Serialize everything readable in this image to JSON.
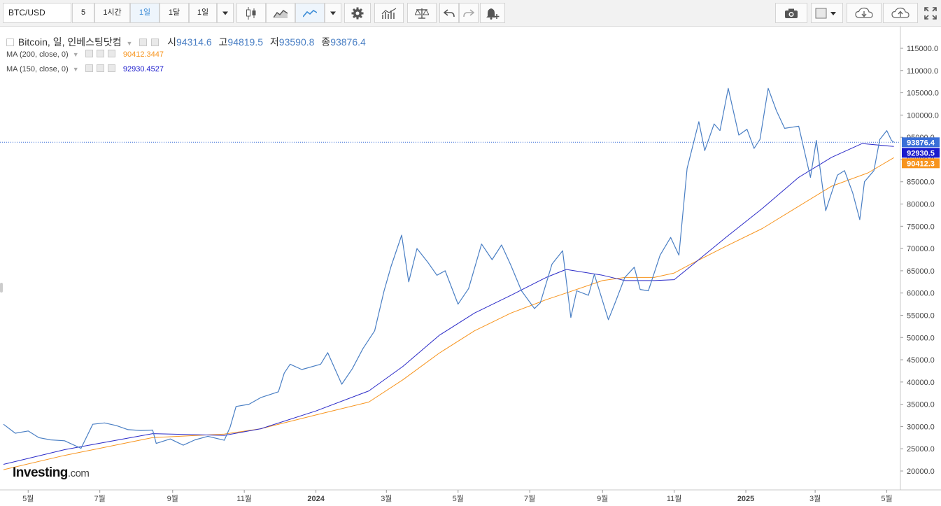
{
  "toolbar": {
    "symbol": "BTC/USD",
    "interval": "5",
    "buttons": [
      "1시간",
      "1일",
      "1달",
      "1일"
    ],
    "active_button_index": 1,
    "icons": [
      "candlestick-chart-icon",
      "area-chart-icon",
      "line-chart-icon",
      "dropdown-icon",
      "settings-gear-icon",
      "bar-chart-icon",
      "scales-icon",
      "undo-icon",
      "redo-icon",
      "alert-bell-icon",
      "camera-icon",
      "color-box-icon",
      "cloud-download-icon",
      "cloud-upload-icon",
      "fullscreen-icon"
    ]
  },
  "legend": {
    "title": "Bitcoin, 일, 인베스팅닷컴",
    "open_label": "시",
    "open": "94314.6",
    "high_label": "고",
    "high": "94819.5",
    "low_label": "저",
    "low": "93590.8",
    "close_label": "종",
    "close": "93876.4",
    "ma200_label": "MA (200, close, 0)",
    "ma200_value": "90412.3447",
    "ma150_label": "MA (150, close, 0)",
    "ma150_value": "92930.4527"
  },
  "logo": {
    "main": "Investing",
    "suffix": ".com"
  },
  "colors": {
    "price": "#4a7fc4",
    "ma200": "#f7941d",
    "ma150": "#2b2bc8",
    "last_price_tag": "#3a6fd8",
    "ma150_tag": "#1a1acc",
    "ma200_tag": "#f7941d"
  },
  "chart_data": {
    "type": "line",
    "y_axis": {
      "ticks": [
        115000,
        110000,
        105000,
        100000,
        95000,
        90000,
        85000,
        80000,
        75000,
        70000,
        65000,
        60000,
        55000,
        50000,
        45000,
        40000,
        35000,
        30000,
        25000,
        20000
      ],
      "ylim": [
        15000,
        120000
      ]
    },
    "x_axis": {
      "range": [
        "2023-04-10",
        "2025-05-12"
      ],
      "ticks": [
        {
          "date": "2023-05-01",
          "label": "5월"
        },
        {
          "date": "2023-07-01",
          "label": "7월"
        },
        {
          "date": "2023-09-01",
          "label": "9월"
        },
        {
          "date": "2023-11-01",
          "label": "11월"
        },
        {
          "date": "2024-01-01",
          "label": "2024"
        },
        {
          "date": "2024-03-01",
          "label": "3월"
        },
        {
          "date": "2024-05-01",
          "label": "5월"
        },
        {
          "date": "2024-07-01",
          "label": "7월"
        },
        {
          "date": "2024-09-01",
          "label": "9월"
        },
        {
          "date": "2024-11-01",
          "label": "11월"
        },
        {
          "date": "2025-01-01",
          "label": "2025"
        },
        {
          "date": "2025-03-01",
          "label": "3월"
        },
        {
          "date": "2025-05-01",
          "label": "5월"
        }
      ]
    },
    "series": [
      {
        "key": "price",
        "points": [
          [
            "2023-04-10",
            30500
          ],
          [
            "2023-04-20",
            28500
          ],
          [
            "2023-05-01",
            29000
          ],
          [
            "2023-05-10",
            27500
          ],
          [
            "2023-05-20",
            27000
          ],
          [
            "2023-06-01",
            26800
          ],
          [
            "2023-06-15",
            25100
          ],
          [
            "2023-06-25",
            30500
          ],
          [
            "2023-07-05",
            30800
          ],
          [
            "2023-07-15",
            30200
          ],
          [
            "2023-07-25",
            29300
          ],
          [
            "2023-08-05",
            29100
          ],
          [
            "2023-08-15",
            29200
          ],
          [
            "2023-08-18",
            26200
          ],
          [
            "2023-08-30",
            27200
          ],
          [
            "2023-09-10",
            25800
          ],
          [
            "2023-09-20",
            27000
          ],
          [
            "2023-10-01",
            27800
          ],
          [
            "2023-10-15",
            26900
          ],
          [
            "2023-10-20",
            29900
          ],
          [
            "2023-10-25",
            34500
          ],
          [
            "2023-11-05",
            35000
          ],
          [
            "2023-11-15",
            36500
          ],
          [
            "2023-11-30",
            37800
          ],
          [
            "2023-12-05",
            42000
          ],
          [
            "2023-12-10",
            44000
          ],
          [
            "2023-12-20",
            42800
          ],
          [
            "2024-01-05",
            44000
          ],
          [
            "2024-01-11",
            46600
          ],
          [
            "2024-01-23",
            39500
          ],
          [
            "2024-02-01",
            43000
          ],
          [
            "2024-02-10",
            47500
          ],
          [
            "2024-02-20",
            51500
          ],
          [
            "2024-02-28",
            60500
          ],
          [
            "2024-03-05",
            66000
          ],
          [
            "2024-03-14",
            73000
          ],
          [
            "2024-03-20",
            62500
          ],
          [
            "2024-03-27",
            70000
          ],
          [
            "2024-04-05",
            67000
          ],
          [
            "2024-04-13",
            64000
          ],
          [
            "2024-04-20",
            65000
          ],
          [
            "2024-05-01",
            57500
          ],
          [
            "2024-05-10",
            61000
          ],
          [
            "2024-05-21",
            71000
          ],
          [
            "2024-05-30",
            67500
          ],
          [
            "2024-06-07",
            70800
          ],
          [
            "2024-06-15",
            66200
          ],
          [
            "2024-06-24",
            60500
          ],
          [
            "2024-07-05",
            56500
          ],
          [
            "2024-07-10",
            57800
          ],
          [
            "2024-07-20",
            66500
          ],
          [
            "2024-07-29",
            69500
          ],
          [
            "2024-08-05",
            54500
          ],
          [
            "2024-08-10",
            60500
          ],
          [
            "2024-08-20",
            59500
          ],
          [
            "2024-08-25",
            64200
          ],
          [
            "2024-09-06",
            54000
          ],
          [
            "2024-09-12",
            58000
          ],
          [
            "2024-09-20",
            63500
          ],
          [
            "2024-09-28",
            65800
          ],
          [
            "2024-10-03",
            60800
          ],
          [
            "2024-10-10",
            60500
          ],
          [
            "2024-10-20",
            68500
          ],
          [
            "2024-10-29",
            72500
          ],
          [
            "2024-11-05",
            68500
          ],
          [
            "2024-11-12",
            88000
          ],
          [
            "2024-11-22",
            98500
          ],
          [
            "2024-11-27",
            92000
          ],
          [
            "2024-12-05",
            98000
          ],
          [
            "2024-12-10",
            96500
          ],
          [
            "2024-12-17",
            106000
          ],
          [
            "2024-12-26",
            95500
          ],
          [
            "2025-01-02",
            96800
          ],
          [
            "2025-01-08",
            92500
          ],
          [
            "2025-01-13",
            94500
          ],
          [
            "2025-01-20",
            106000
          ],
          [
            "2025-01-27",
            101000
          ],
          [
            "2025-02-03",
            97000
          ],
          [
            "2025-02-15",
            97500
          ],
          [
            "2025-02-25",
            86000
          ],
          [
            "2025-03-02",
            94300
          ],
          [
            "2025-03-10",
            78500
          ],
          [
            "2025-03-20",
            86500
          ],
          [
            "2025-03-26",
            87500
          ],
          [
            "2025-04-02",
            82500
          ],
          [
            "2025-04-08",
            76500
          ],
          [
            "2025-04-12",
            85000
          ],
          [
            "2025-04-20",
            87500
          ],
          [
            "2025-04-25",
            94500
          ],
          [
            "2025-05-01",
            96500
          ],
          [
            "2025-05-05",
            94300
          ],
          [
            "2025-05-07",
            93876.4
          ]
        ]
      },
      {
        "key": "ma150",
        "points": [
          [
            "2023-04-10",
            21500
          ],
          [
            "2023-06-01",
            24800
          ],
          [
            "2023-08-15",
            28400
          ],
          [
            "2023-10-15",
            28000
          ],
          [
            "2023-11-15",
            29500
          ],
          [
            "2024-01-01",
            33500
          ],
          [
            "2024-02-15",
            38000
          ],
          [
            "2024-03-15",
            43500
          ],
          [
            "2024-04-15",
            50500
          ],
          [
            "2024-05-15",
            55500
          ],
          [
            "2024-06-15",
            59500
          ],
          [
            "2024-07-15",
            63500
          ],
          [
            "2024-08-01",
            65300
          ],
          [
            "2024-09-01",
            64000
          ],
          [
            "2024-09-20",
            62800
          ],
          [
            "2024-10-15",
            62800
          ],
          [
            "2024-11-01",
            63000
          ],
          [
            "2024-11-15",
            66000
          ],
          [
            "2024-12-15",
            72500
          ],
          [
            "2025-01-15",
            79000
          ],
          [
            "2025-02-15",
            86000
          ],
          [
            "2025-03-15",
            90500
          ],
          [
            "2025-04-10",
            93600
          ],
          [
            "2025-05-07",
            92930.45
          ]
        ]
      },
      {
        "key": "ma200",
        "points": [
          [
            "2023-04-10",
            20300
          ],
          [
            "2023-06-01",
            23500
          ],
          [
            "2023-08-15",
            27500
          ],
          [
            "2023-10-15",
            28300
          ],
          [
            "2023-11-15",
            29500
          ],
          [
            "2024-01-01",
            32600
          ],
          [
            "2024-02-15",
            35500
          ],
          [
            "2024-03-15",
            40500
          ],
          [
            "2024-04-15",
            46500
          ],
          [
            "2024-05-15",
            51500
          ],
          [
            "2024-06-15",
            55500
          ],
          [
            "2024-07-15",
            58500
          ],
          [
            "2024-08-01",
            60000
          ],
          [
            "2024-09-01",
            62800
          ],
          [
            "2024-09-20",
            63500
          ],
          [
            "2024-10-15",
            63500
          ],
          [
            "2024-11-01",
            64500
          ],
          [
            "2024-11-15",
            66500
          ],
          [
            "2024-12-15",
            70500
          ],
          [
            "2025-01-15",
            74500
          ],
          [
            "2025-02-15",
            79500
          ],
          [
            "2025-03-15",
            84000
          ],
          [
            "2025-04-15",
            87000
          ],
          [
            "2025-05-07",
            90412.34
          ]
        ]
      }
    ],
    "price_tags": [
      {
        "series": "price",
        "label": "93876.4",
        "value": 93876.4
      },
      {
        "series": "ma150",
        "label": "92930.5",
        "value": 92930.5
      },
      {
        "series": "ma200",
        "label": "90412.3",
        "value": 90412.3
      }
    ],
    "last_price_line": 93876.4
  }
}
